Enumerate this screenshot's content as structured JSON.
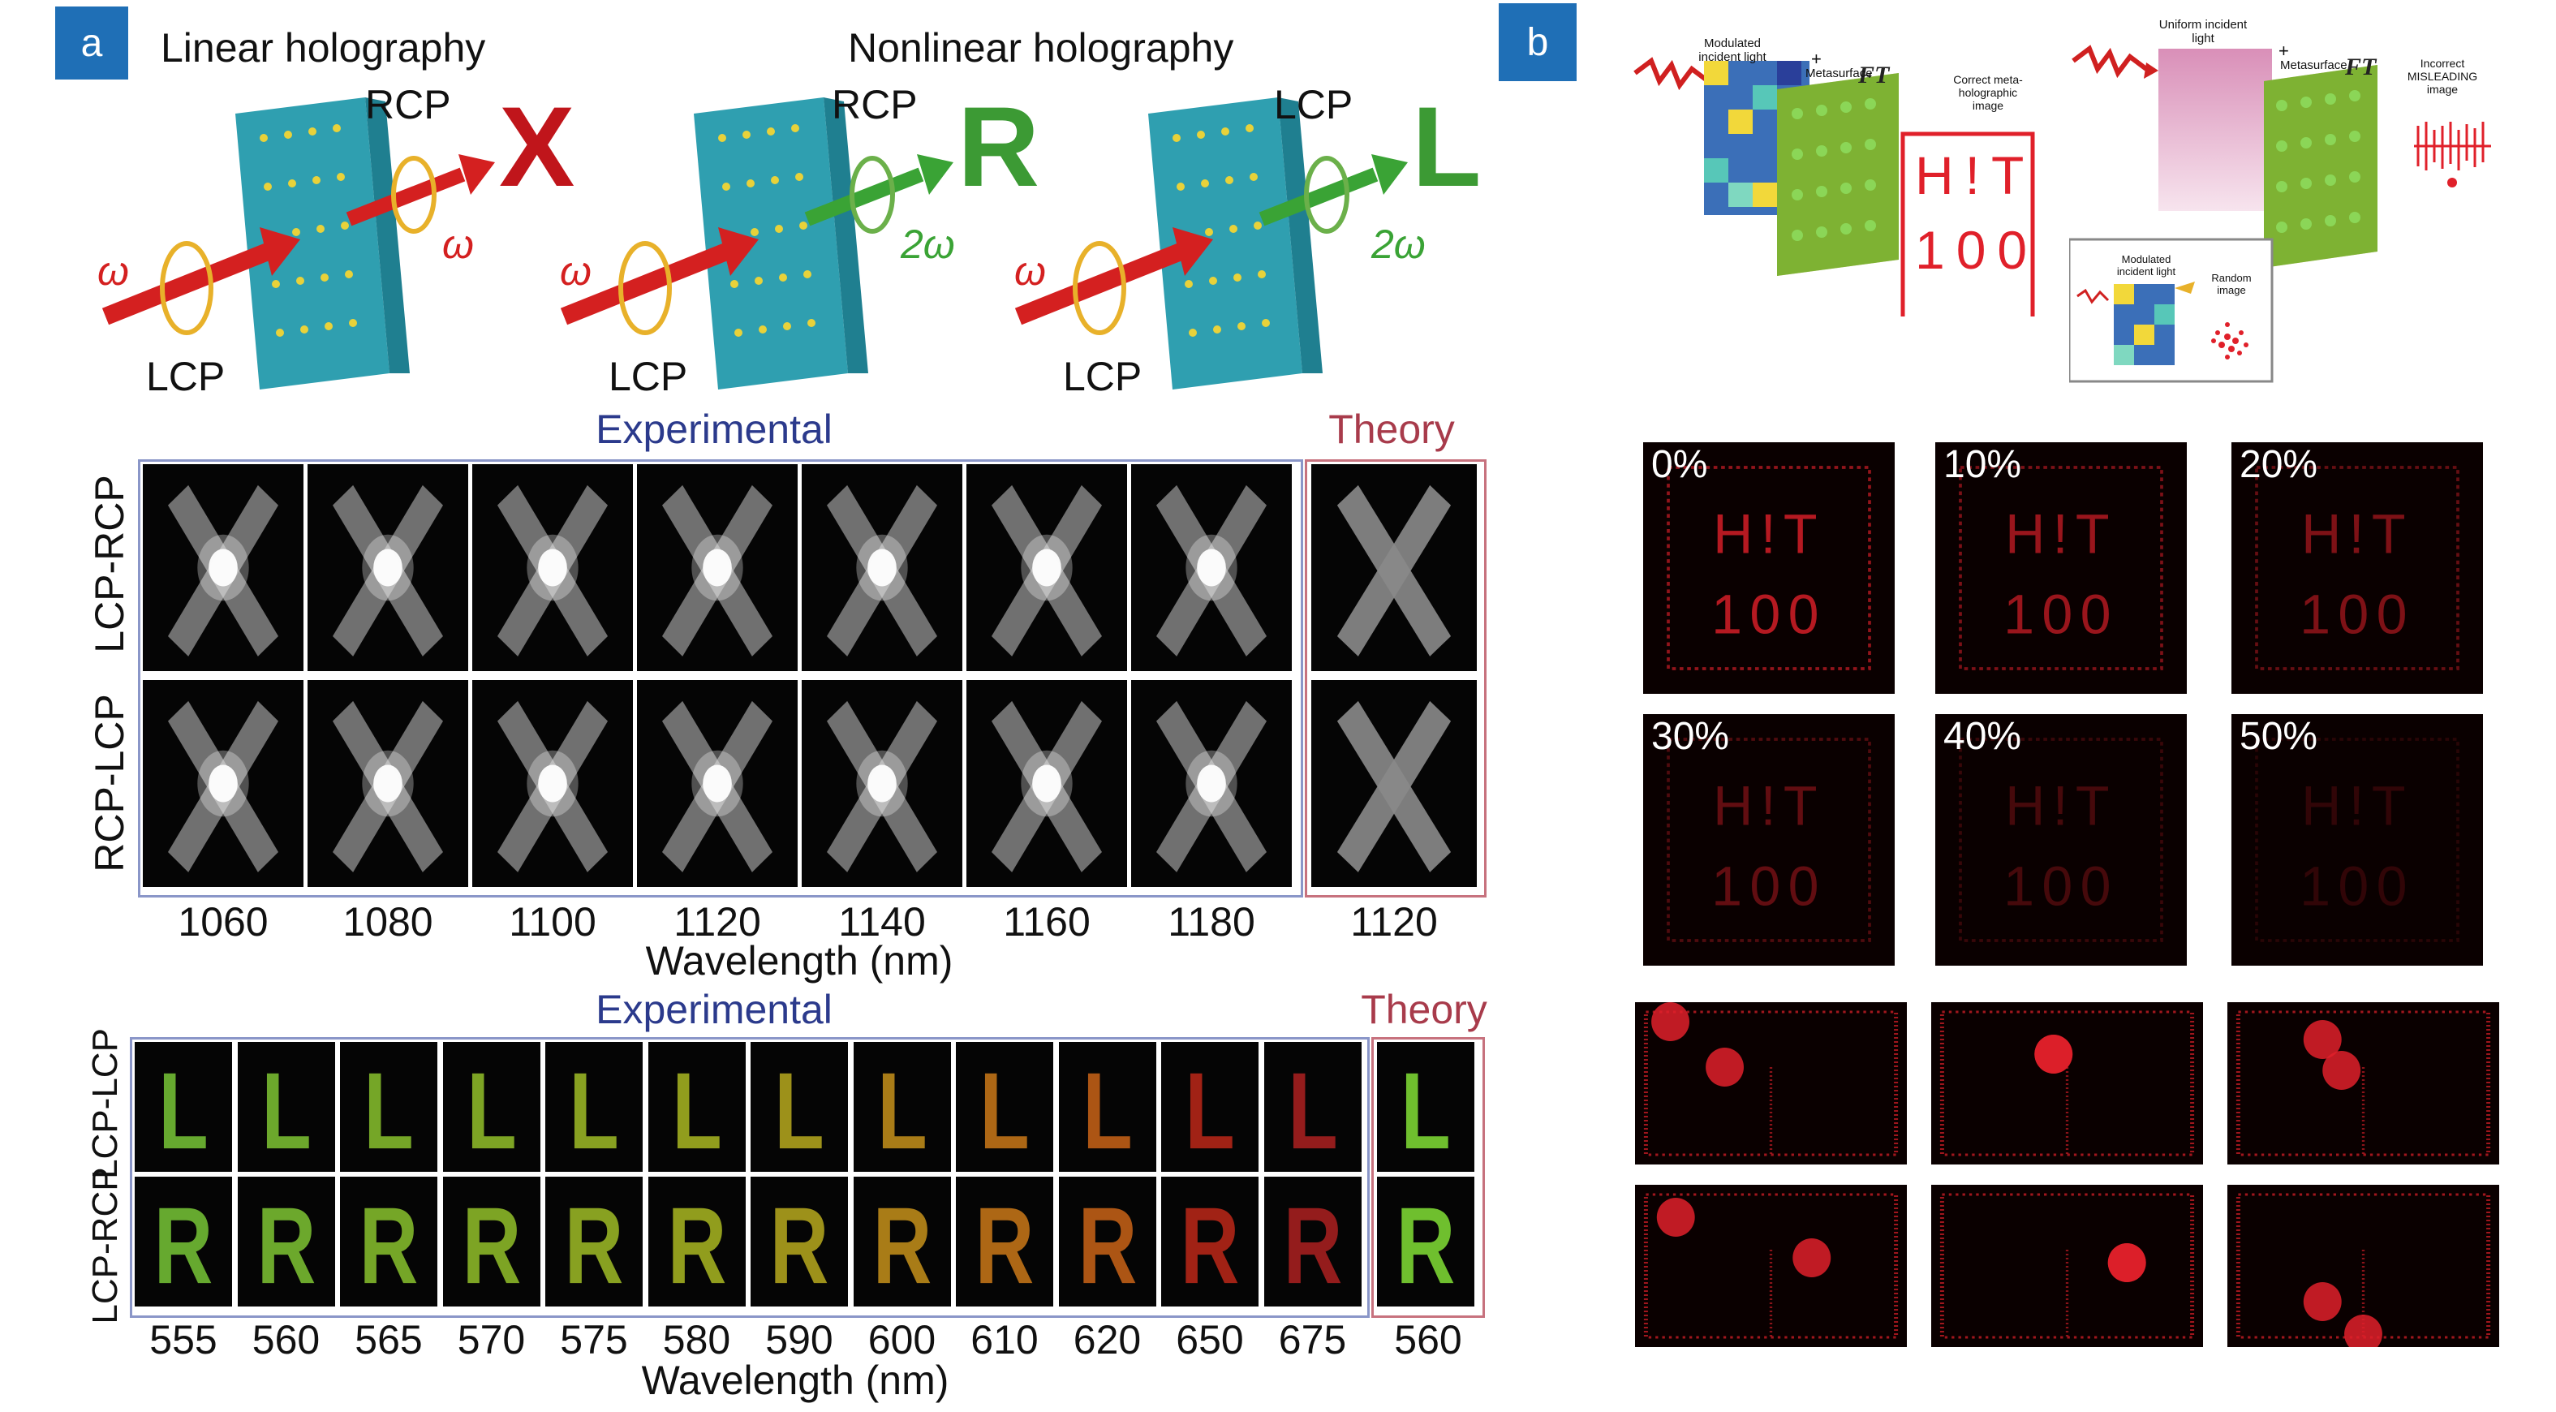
{
  "panel_a": {
    "badge": "a",
    "linear_title": "Linear holography",
    "nonlinear_title": "Nonlinear holography",
    "diagrams": [
      {
        "out_pol": "RCP",
        "in_pol": "LCP",
        "in_freq": "ω",
        "out_freq": "ω",
        "out_letter": "X",
        "beam_color": "#d42020"
      },
      {
        "out_pol": "RCP",
        "in_pol": "LCP",
        "in_freq": "ω",
        "out_freq": "2ω",
        "out_letter": "R",
        "beam_color": "#3aa335"
      },
      {
        "out_pol": "LCP",
        "in_pol": "LCP",
        "in_freq": "ω",
        "out_freq": "2ω",
        "out_letter": "L",
        "beam_color": "#3aa335"
      }
    ],
    "grid1": {
      "experimental_label": "Experimental",
      "theory_label": "Theory",
      "row_labels": [
        "LCP-RCP",
        "RCP-LCP"
      ],
      "wavelengths": [
        "1060",
        "1080",
        "1100",
        "1120",
        "1140",
        "1160",
        "1180"
      ],
      "theory_wavelength": "1120",
      "xlabel": "Wavelength (nm)",
      "image_letter": "X"
    },
    "grid2": {
      "experimental_label": "Experimental",
      "theory_label": "Theory",
      "row_labels": [
        "LCP-LCP",
        "LCP-RCP"
      ],
      "row_letters": [
        "L",
        "R"
      ],
      "wavelengths": [
        "555",
        "560",
        "565",
        "570",
        "575",
        "580",
        "590",
        "600",
        "610",
        "620",
        "650",
        "675"
      ],
      "tile_colors": [
        "#7fd23a",
        "#86d136",
        "#92cf30",
        "#9ccc2c",
        "#a9c828",
        "#b4c424",
        "#c3b420",
        "#d29a1c",
        "#d8801a",
        "#d66a18",
        "#c92a1a",
        "#b82222"
      ],
      "theory_wavelength": "560",
      "theory_color": "#6fbf2e",
      "xlabel": "Wavelength (nm)"
    }
  },
  "panel_b": {
    "badge": "b",
    "schematic_left": {
      "modulated_label": "Modulated incident light",
      "plus": "+",
      "metasurface_label": "Metasurface",
      "result_label": "Correct meta-holographic image",
      "hologram_line1": "H!T",
      "hologram_line2": "100"
    },
    "schematic_right": {
      "uniform_label": "Uniform incident light",
      "plus": "+",
      "metasurface_label": "Metasurface",
      "result_label": "Incorrect MISLEADING image",
      "inset_modulated_label": "Modulated incident light",
      "inset_random_label": "Random image"
    },
    "noise_panels": {
      "percents": [
        "0%",
        "10%",
        "20%",
        "30%",
        "40%",
        "50%"
      ],
      "text_line1": "H!T",
      "text_line2": "100"
    },
    "colors": {
      "hologram_red": "#e0202a"
    }
  }
}
